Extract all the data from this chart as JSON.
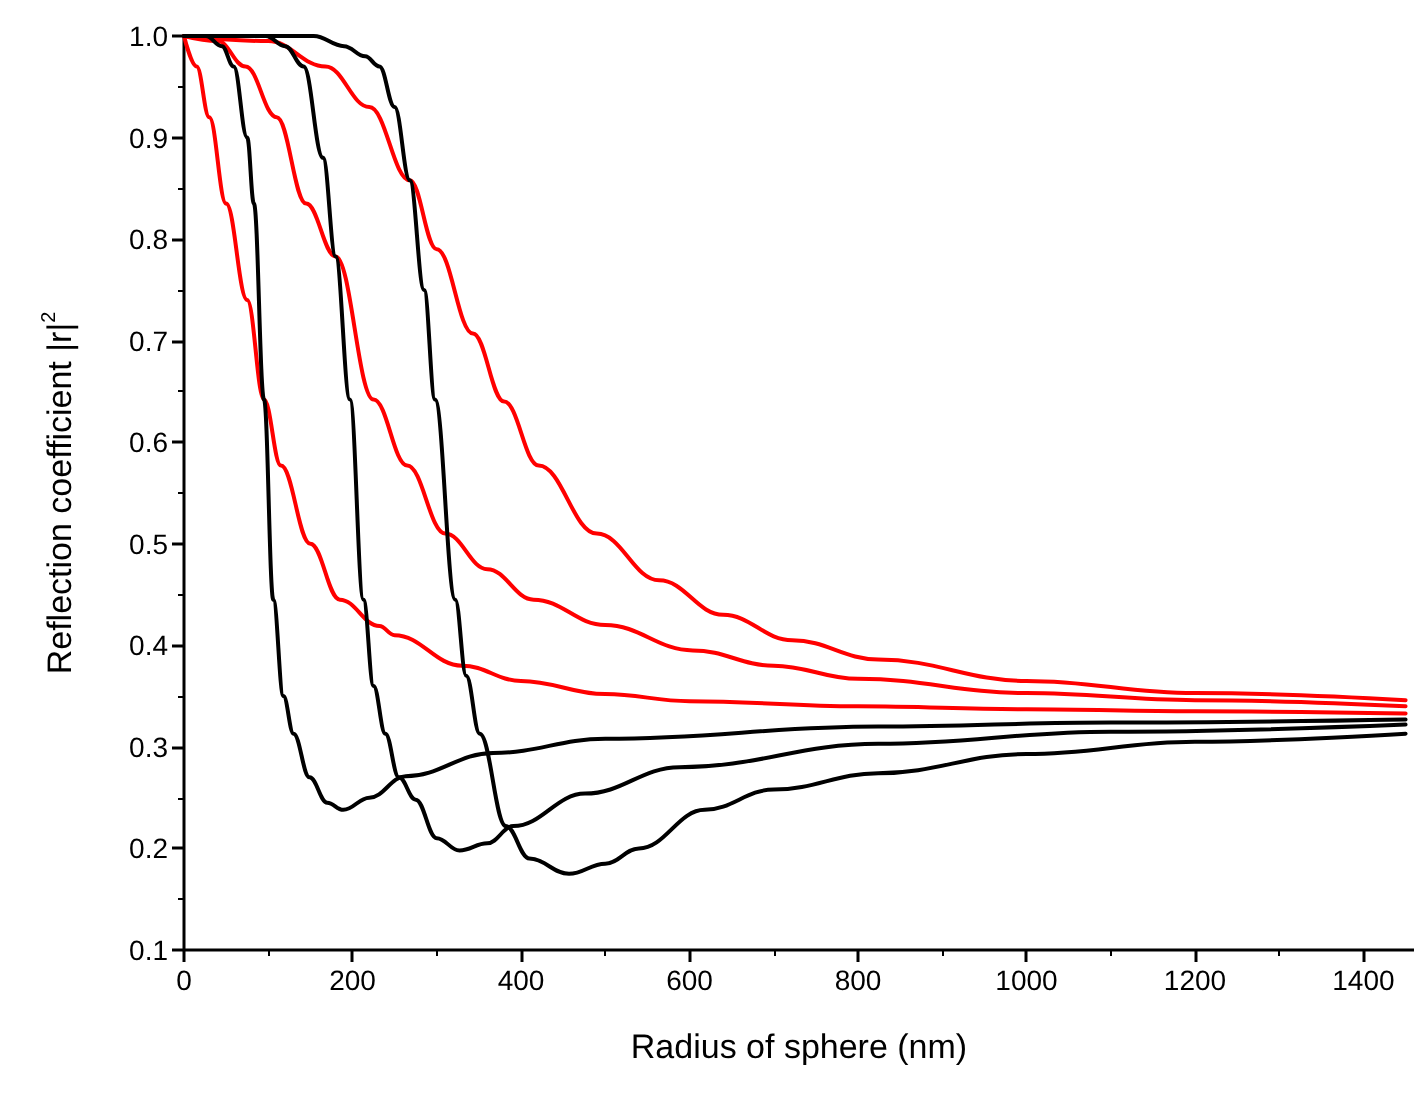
{
  "chart_data": {
    "type": "line",
    "xlabel": "Radius of sphere (nm)",
    "ylabel": "Reflection coefficient |r|$^{2}$",
    "xlim": [
      0,
      1460
    ],
    "xticks": [
      0,
      200,
      400,
      600,
      800,
      1000,
      1200,
      1400
    ],
    "ylim": [
      0.1,
      1.0
    ],
    "yticks": [
      0.1,
      0.2,
      0.3,
      0.4,
      0.5,
      0.6,
      0.7,
      0.8,
      0.9,
      {
        "value": 1.0,
        "label": "1.0"
      }
    ],
    "grid": false,
    "marker": "none",
    "line_style": "solid",
    "series": [
      {
        "color": "#ff0000",
        "x": [
          0,
          15,
          30,
          50,
          75,
          95,
          115,
          150,
          185,
          232,
          250,
          330,
          400,
          500,
          600,
          800,
          1000,
          1200,
          1450
        ],
        "values": [
          1.0,
          0.97,
          0.92,
          0.835,
          0.74,
          0.642,
          0.577,
          0.5,
          0.445,
          0.419,
          0.41,
          0.38,
          0.365,
          0.352,
          0.345,
          0.34,
          0.337,
          0.335,
          0.333
        ]
      },
      {
        "color": "#ff0000",
        "x": [
          0,
          40,
          73,
          110,
          145,
          180,
          225,
          265,
          310,
          360,
          415,
          500,
          604,
          700,
          800,
          1000,
          1200,
          1450
        ],
        "values": [
          1.0,
          0.995,
          0.97,
          0.92,
          0.835,
          0.783,
          0.642,
          0.577,
          0.51,
          0.475,
          0.445,
          0.42,
          0.395,
          0.38,
          0.367,
          0.353,
          0.346,
          0.34
        ]
      },
      {
        "color": "#ff0000",
        "x": [
          0,
          100,
          168,
          220,
          268,
          300,
          343,
          380,
          421,
          490,
          564,
          640,
          722,
          824,
          1000,
          1200,
          1450
        ],
        "values": [
          1.0,
          0.995,
          0.97,
          0.93,
          0.858,
          0.79,
          0.707,
          0.64,
          0.577,
          0.51,
          0.464,
          0.43,
          0.405,
          0.386,
          0.365,
          0.353,
          0.346
        ]
      },
      {
        "color": "#000000",
        "x": [
          0,
          26,
          45,
          59,
          75,
          83,
          95,
          106,
          118,
          130,
          149,
          170,
          189,
          220,
          263,
          367,
          500,
          824,
          1100,
          1450
        ],
        "values": [
          1.0,
          1.0,
          0.99,
          0.97,
          0.9,
          0.835,
          0.642,
          0.445,
          0.35,
          0.313,
          0.27,
          0.245,
          0.238,
          0.25,
          0.271,
          0.294,
          0.308,
          0.32,
          0.324,
          0.327
        ]
      },
      {
        "color": "#000000",
        "x": [
          0,
          97,
          120,
          142,
          165,
          180,
          197,
          213,
          225,
          239,
          255,
          275,
          300,
          327,
          360,
          391,
          476,
          588,
          824,
          1100,
          1450
        ],
        "values": [
          1.0,
          1.0,
          0.99,
          0.97,
          0.88,
          0.783,
          0.642,
          0.445,
          0.36,
          0.313,
          0.27,
          0.248,
          0.21,
          0.198,
          0.205,
          0.222,
          0.254,
          0.28,
          0.303,
          0.315,
          0.322
        ]
      },
      {
        "color": "#000000",
        "x": [
          0,
          154,
          190,
          215,
          232,
          250,
          268,
          285,
          298,
          322,
          335,
          351,
          382,
          410,
          457,
          500,
          540,
          618,
          700,
          824,
          1000,
          1200,
          1450
        ],
        "values": [
          1.0,
          1.0,
          0.99,
          0.98,
          0.97,
          0.93,
          0.858,
          0.75,
          0.642,
          0.445,
          0.37,
          0.313,
          0.222,
          0.19,
          0.175,
          0.185,
          0.2,
          0.238,
          0.258,
          0.274,
          0.293,
          0.305,
          0.313
        ]
      }
    ]
  }
}
